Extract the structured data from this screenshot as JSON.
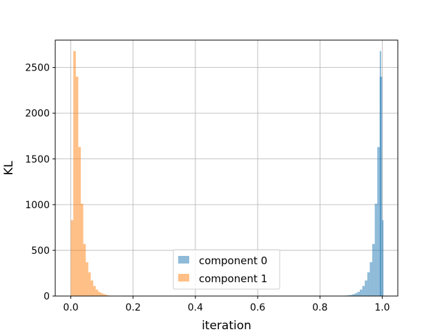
{
  "chart_data": {
    "type": "bar",
    "title": "",
    "xlabel": "iteration",
    "ylabel": "KL",
    "xlim": [
      -0.05,
      1.05
    ],
    "ylim": [
      0,
      2800
    ],
    "xticks": [
      0.0,
      0.2,
      0.4,
      0.6,
      0.8,
      1.0
    ],
    "xtick_labels": [
      "0.0",
      "0.2",
      "0.4",
      "0.6",
      "0.8",
      "1.0"
    ],
    "yticks": [
      0,
      500,
      1000,
      1500,
      2000,
      2500
    ],
    "ytick_labels": [
      "0",
      "500",
      "1000",
      "1500",
      "2000",
      "2500"
    ],
    "grid": true,
    "legend_position": "lower-center",
    "bin_width": 0.008,
    "series": [
      {
        "name": "component 0",
        "color": "#1f77b4",
        "alpha": 0.5,
        "bin_starts": [
          0.872,
          0.88,
          0.888,
          0.896,
          0.904,
          0.912,
          0.92,
          0.928,
          0.936,
          0.944,
          0.952,
          0.96,
          0.968,
          0.976,
          0.984,
          0.992
        ],
        "counts": [
          2,
          5,
          8,
          12,
          20,
          30,
          45,
          70,
          110,
          170,
          260,
          370,
          570,
          1010,
          1630,
          2400
        ]
      },
      {
        "name": "component 1",
        "color": "#ff7f0e",
        "alpha": 0.5,
        "bin_starts": [
          0.0,
          0.008,
          0.016,
          0.024,
          0.032,
          0.04,
          0.048,
          0.056,
          0.064,
          0.072,
          0.08,
          0.088,
          0.096,
          0.104,
          0.112,
          0.12
        ],
        "counts": [
          830,
          2680,
          2400,
          1630,
          1010,
          570,
          370,
          260,
          170,
          110,
          70,
          45,
          30,
          20,
          12,
          5
        ]
      }
    ],
    "extra_bars": [
      {
        "series": 0,
        "x": 0.992,
        "count": 2680
      },
      {
        "series": 0,
        "x": 0.9995,
        "count": 830
      }
    ]
  }
}
